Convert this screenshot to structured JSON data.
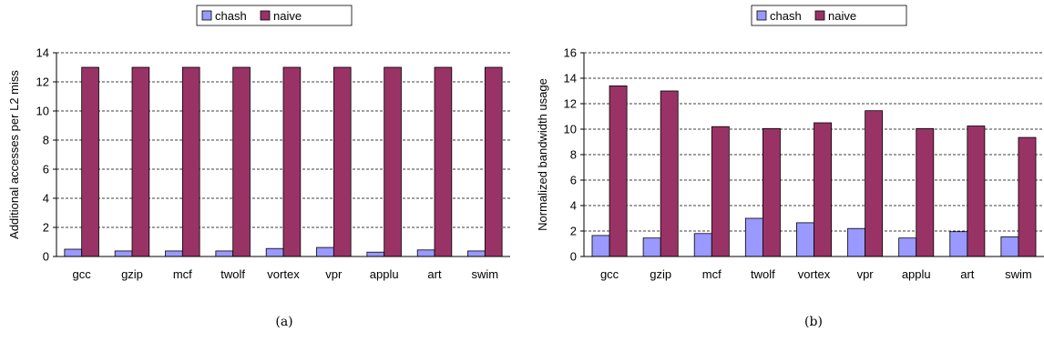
{
  "chart_data": [
    {
      "type": "bar",
      "caption": "(a)",
      "ylabel": "Additional accesses per L2 miss",
      "ylim": [
        0,
        14
      ],
      "yticks": [
        0,
        2,
        4,
        6,
        8,
        10,
        12,
        14
      ],
      "grid": "horizontal dashed",
      "legend_position": "top",
      "categories": [
        "gcc",
        "gzip",
        "mcf",
        "twolf",
        "vortex",
        "vpr",
        "applu",
        "art",
        "swim"
      ],
      "series": [
        {
          "name": "chash",
          "color": "#9999ff",
          "values": [
            0.5,
            0.38,
            0.38,
            0.38,
            0.55,
            0.62,
            0.3,
            0.45,
            0.38
          ]
        },
        {
          "name": "naive",
          "color": "#993366",
          "values": [
            13,
            13,
            13,
            13,
            13,
            13,
            13,
            13,
            13
          ]
        }
      ]
    },
    {
      "type": "bar",
      "caption": "(b)",
      "ylabel": "Normalized bandwidth usage",
      "ylim": [
        0,
        16
      ],
      "yticks": [
        0,
        2,
        4,
        6,
        8,
        10,
        12,
        14,
        16
      ],
      "grid": "horizontal dashed",
      "legend_position": "top",
      "categories": [
        "gcc",
        "gzip",
        "mcf",
        "twolf",
        "vortex",
        "vpr",
        "applu",
        "art",
        "swim"
      ],
      "series": [
        {
          "name": "chash",
          "color": "#9999ff",
          "values": [
            1.65,
            1.45,
            1.8,
            3.0,
            2.65,
            2.2,
            1.45,
            1.95,
            1.55
          ]
        },
        {
          "name": "naive",
          "color": "#993366",
          "values": [
            13.4,
            13.0,
            10.2,
            10.05,
            10.5,
            11.45,
            10.05,
            10.25,
            9.35
          ]
        }
      ]
    }
  ]
}
